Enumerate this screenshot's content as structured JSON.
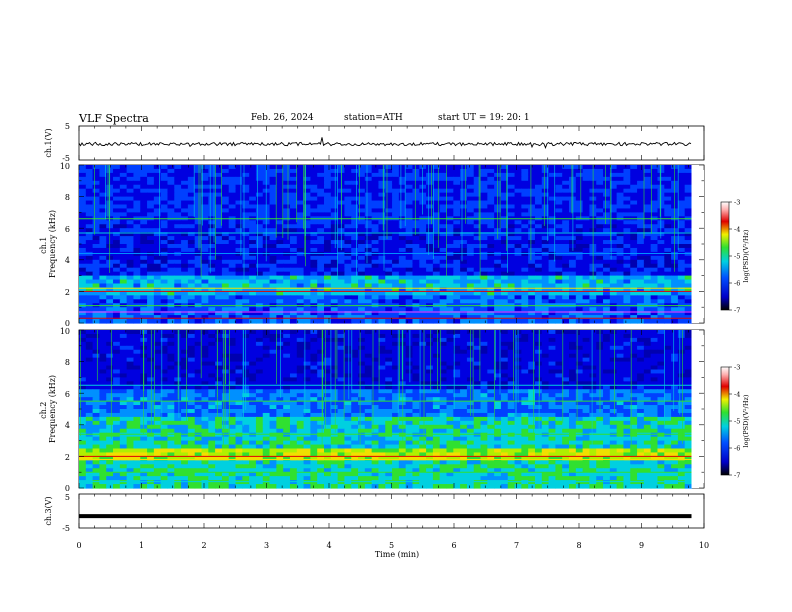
{
  "header": {
    "title": "VLF Spectra",
    "date": "Feb. 26, 2024",
    "station": "station=ATH",
    "start": "start UT = 19: 20: 1"
  },
  "chart_data": [
    {
      "type": "line",
      "panel": "ch1-waveform",
      "ylabel": "ch.1(V)",
      "ylim": [
        -5,
        5
      ],
      "yticks": [
        "5",
        "-5"
      ],
      "x_range_min": [
        0,
        9.8
      ],
      "level": -0.3
    },
    {
      "type": "heatmap",
      "panel": "ch1-spectrogram",
      "ylabel": "ch.1\nFrequency (kHz)",
      "ylim": [
        0,
        10
      ],
      "yticks": [
        "0",
        "2",
        "4",
        "6",
        "8",
        "10"
      ],
      "x_range_min": [
        0,
        9.8
      ],
      "colorbar": {
        "label": "log(PSD)(V²/Hz)",
        "range": [
          -7,
          -3
        ],
        "ticks": [
          "-3",
          "-4",
          "-5",
          "-6",
          "-7"
        ]
      }
    },
    {
      "type": "heatmap",
      "panel": "ch2-spectrogram",
      "ylabel": "ch.2\nFrequency (kHz)",
      "ylim": [
        0,
        10
      ],
      "yticks": [
        "0",
        "2",
        "4",
        "6",
        "8",
        "10"
      ],
      "x_range_min": [
        0,
        9.8
      ],
      "colorbar": {
        "label": "log(PSD)(V²/Hz)",
        "range": [
          -7,
          -3
        ],
        "ticks": [
          "-3",
          "-4",
          "-5",
          "-6",
          "-7"
        ]
      }
    },
    {
      "type": "line",
      "panel": "ch3-waveform",
      "ylabel": "ch.3(V)",
      "ylim": [
        -5,
        5
      ],
      "yticks": [
        "5",
        "-5"
      ],
      "x_range_min": [
        0,
        9.8
      ],
      "level": -1.5
    }
  ],
  "xaxis": {
    "label": "Time (min)",
    "range": [
      0,
      10
    ],
    "ticks": [
      "0",
      "1",
      "2",
      "3",
      "4",
      "5",
      "6",
      "7",
      "8",
      "9",
      "10"
    ]
  },
  "colors": {
    "black": "#000000",
    "blue": "#0000c8",
    "cyan": "#00d0e0",
    "green": "#30e030",
    "yellow": "#f0f000",
    "red": "#e00000"
  }
}
